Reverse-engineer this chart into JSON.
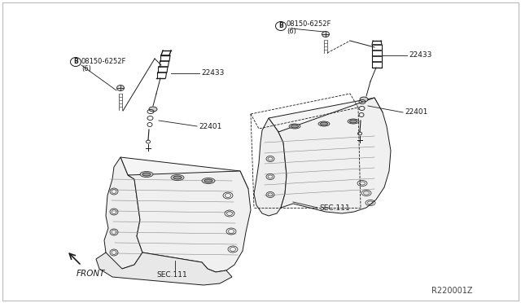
{
  "background_color": "#ffffff",
  "figure_width": 6.4,
  "figure_height": 3.72,
  "dpi": 100,
  "line_color": "#1a1a1a",
  "line_width": 0.7,
  "text_color": "#1a1a1a",
  "label_fontsize": 6.5,
  "ref_code": "R220001Z",
  "front_label": "FRONT",
  "bolt_label_left": "B08150-6252F\n(6)",
  "bolt_label_right": "B08150-6252F\n(6)",
  "coil_label": "22433",
  "plug_label": "22401",
  "sec_label": "SEC.111"
}
